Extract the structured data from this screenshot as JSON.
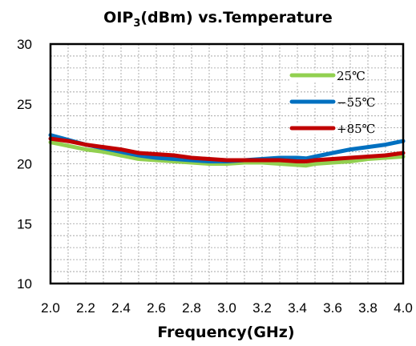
{
  "chart_data": {
    "type": "line",
    "title": {
      "main": "OIP",
      "sub": "3",
      "rest": "(dBm) vs.Temperature"
    },
    "xlabel": "Frequency(GHz)",
    "ylabel": "",
    "xlim": [
      2.0,
      4.0
    ],
    "ylim": [
      10,
      30
    ],
    "x_ticks": [
      "2.0",
      "2.2",
      "2.4",
      "2.6",
      "2.8",
      "3.0",
      "3.2",
      "3.4",
      "3.6",
      "3.8",
      "4.0"
    ],
    "y_ticks": [
      "10",
      "15",
      "20",
      "25",
      "30"
    ],
    "x_tick_values": [
      2.0,
      2.2,
      2.4,
      2.6,
      2.8,
      3.0,
      3.2,
      3.4,
      3.6,
      3.8,
      4.0
    ],
    "y_tick_values": [
      10,
      15,
      20,
      25,
      30
    ],
    "grid": true,
    "legend_position": "top-right",
    "series": [
      {
        "name": "25℃",
        "color": "#92d050",
        "x": [
          2.0,
          2.1,
          2.2,
          2.3,
          2.4,
          2.5,
          2.6,
          2.7,
          2.8,
          2.9,
          3.0,
          3.1,
          3.2,
          3.3,
          3.4,
          3.45,
          3.5,
          3.6,
          3.7,
          3.8,
          3.9,
          4.0
        ],
        "y": [
          21.8,
          21.5,
          21.2,
          21.0,
          20.7,
          20.4,
          20.3,
          20.2,
          20.1,
          20.0,
          20.0,
          20.1,
          20.1,
          20.0,
          19.9,
          19.85,
          20.0,
          20.1,
          20.2,
          20.4,
          20.5,
          20.6
        ]
      },
      {
        "name": "−55℃",
        "color": "#0070c0",
        "x": [
          2.0,
          2.1,
          2.2,
          2.3,
          2.4,
          2.5,
          2.6,
          2.7,
          2.8,
          2.9,
          3.0,
          3.1,
          3.2,
          3.3,
          3.4,
          3.45,
          3.5,
          3.6,
          3.7,
          3.8,
          3.9,
          4.0
        ],
        "y": [
          22.4,
          22.0,
          21.6,
          21.3,
          21.0,
          20.7,
          20.5,
          20.4,
          20.3,
          20.2,
          20.2,
          20.3,
          20.4,
          20.5,
          20.5,
          20.45,
          20.6,
          20.9,
          21.2,
          21.4,
          21.6,
          21.9
        ]
      },
      {
        "name": "+85℃",
        "color": "#c00000",
        "x": [
          2.0,
          2.1,
          2.2,
          2.3,
          2.4,
          2.5,
          2.6,
          2.7,
          2.8,
          2.9,
          3.0,
          3.1,
          3.2,
          3.3,
          3.4,
          3.45,
          3.5,
          3.6,
          3.7,
          3.8,
          3.9,
          4.0
        ],
        "y": [
          22.1,
          21.9,
          21.6,
          21.4,
          21.2,
          20.9,
          20.8,
          20.7,
          20.5,
          20.4,
          20.3,
          20.3,
          20.3,
          20.3,
          20.2,
          20.2,
          20.3,
          20.4,
          20.5,
          20.6,
          20.7,
          20.9
        ]
      }
    ]
  }
}
